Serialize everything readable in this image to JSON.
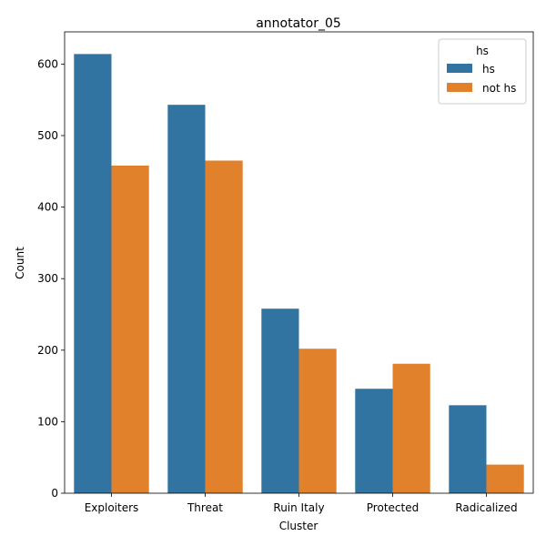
{
  "chart_data": {
    "type": "bar",
    "title": "annotator_05",
    "xlabel": "Cluster",
    "ylabel": "Count",
    "categories": [
      "Exploiters",
      "Threat",
      "Ruin Italy",
      "Protected",
      "Radicalized"
    ],
    "series": [
      {
        "name": "hs",
        "color": "#3274a1",
        "values": [
          614,
          543,
          258,
          146,
          123
        ]
      },
      {
        "name": "not hs",
        "color": "#e1812c",
        "values": [
          458,
          465,
          202,
          181,
          40
        ]
      }
    ],
    "ylim": [
      0,
      645
    ],
    "yticks": [
      0,
      100,
      200,
      300,
      400,
      500,
      600
    ],
    "grid": false,
    "legend": {
      "title": "hs",
      "placement": "top-right"
    }
  }
}
